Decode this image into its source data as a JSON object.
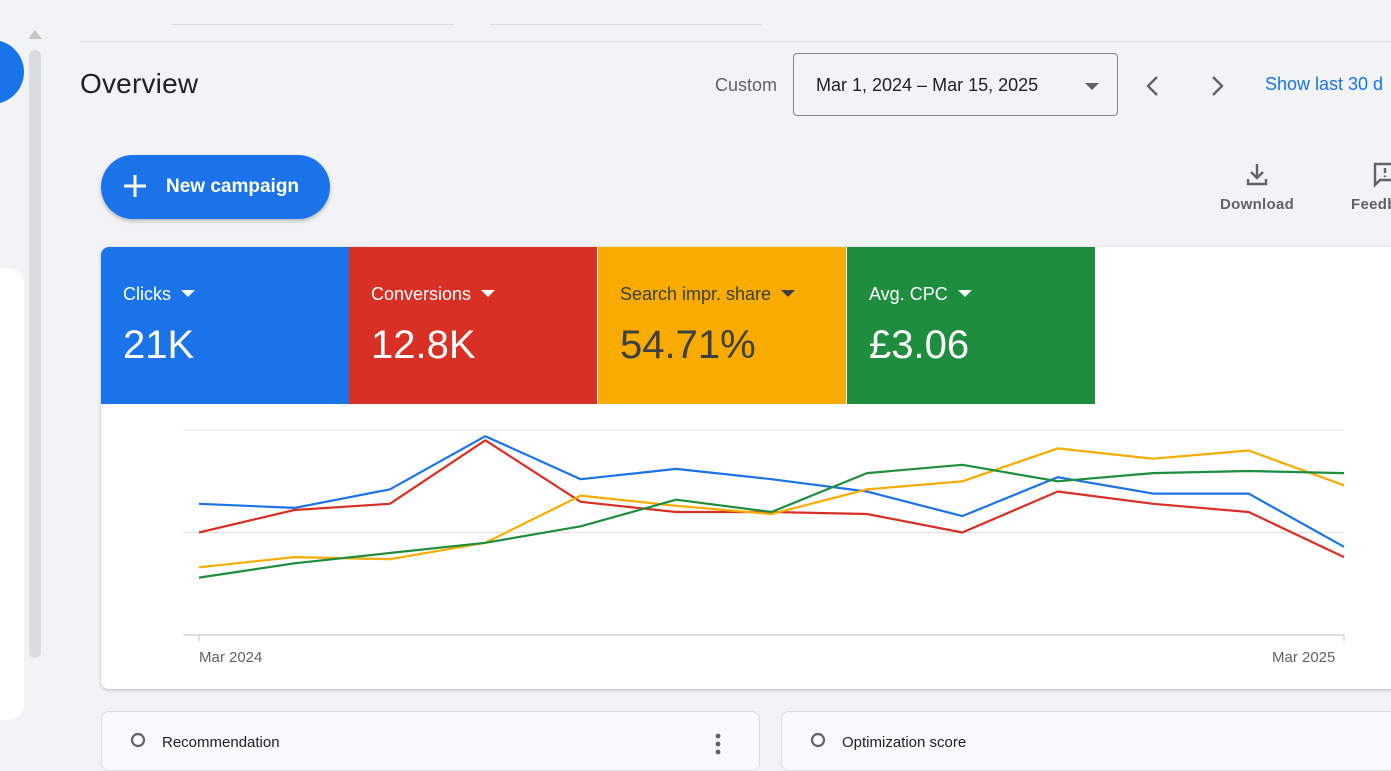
{
  "header": {
    "title": "Overview",
    "date_range_label": "Custom",
    "date_range_value": "Mar 1, 2024 – Mar 15, 2025",
    "show_last": "Show last 30 d"
  },
  "actions": {
    "new_campaign": "New campaign",
    "download": "Download",
    "feedback": "Feedb"
  },
  "metrics": [
    {
      "name": "Clicks",
      "value": "21K",
      "color": "#1a73e8"
    },
    {
      "name": "Conversions",
      "value": "12.8K",
      "color": "#d93025"
    },
    {
      "name": "Search impr. share",
      "value": "54.71%",
      "color": "#f9ab00"
    },
    {
      "name": "Avg. CPC",
      "value": "£3.06",
      "color": "#1e8e3e"
    }
  ],
  "chart_data": {
    "type": "line",
    "x": [
      "2024-03-01",
      "2024-04-01",
      "2024-05-01",
      "2024-06-01",
      "2024-07-01",
      "2024-08-01",
      "2024-09-01",
      "2024-10-01",
      "2024-11-01",
      "2024-12-01",
      "2025-01-01",
      "2025-02-01",
      "2025-03-15"
    ],
    "x_tick_labels": [
      "Mar 2024",
      "Mar 2025"
    ],
    "ylim": [
      0,
      100
    ],
    "grid": true,
    "series": [
      {
        "color": "#1a73e8",
        "values": [
          64,
          62,
          71,
          97,
          76,
          81,
          76,
          70,
          58,
          77,
          69,
          69,
          43
        ]
      },
      {
        "color": "#d93025",
        "values": [
          50,
          61,
          64,
          95,
          65,
          60,
          60,
          59,
          50,
          70,
          64,
          60,
          38
        ]
      },
      {
        "color": "#f9ab00",
        "values": [
          33,
          38,
          37,
          45,
          68,
          63,
          59,
          71,
          75,
          91,
          86,
          90,
          73
        ]
      },
      {
        "color": "#1e8e3e",
        "values": [
          28,
          35,
          40,
          45,
          53,
          66,
          60,
          79,
          83,
          75,
          79,
          80,
          79
        ]
      }
    ]
  },
  "bottom_cards": {
    "recommendation": "Recommendation",
    "optimization": "Optimization score"
  }
}
